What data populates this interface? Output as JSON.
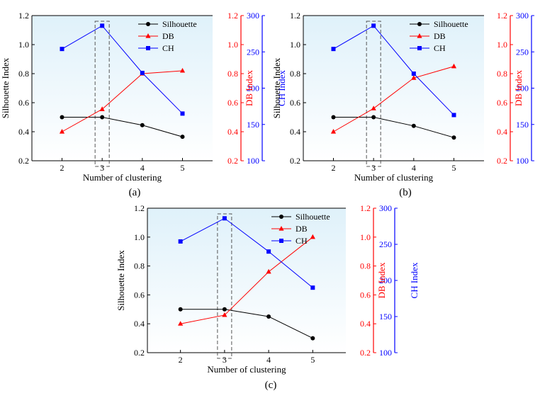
{
  "chart_data": [
    {
      "type": "line",
      "caption": "(a)",
      "xlabel": "Number of clustering",
      "categories": [
        "2",
        "3",
        "4",
        "5"
      ],
      "y_axes": {
        "left": {
          "label": "Silhouette Index",
          "ticks": [
            "0.2",
            "0.4",
            "0.6",
            "0.8",
            "1.0",
            "1.2"
          ],
          "range": [
            0.2,
            1.2
          ],
          "color": "#000000"
        },
        "right1": {
          "label": "DB Index",
          "ticks": [
            "0.2",
            "0.4",
            "0.6",
            "0.8",
            "1.0",
            "1.2"
          ],
          "range": [
            0.2,
            1.2
          ],
          "color": "#ff0000"
        },
        "right2": {
          "label": "CH Index",
          "ticks": [
            "100",
            "150",
            "200",
            "250",
            "300"
          ],
          "range": [
            100,
            300
          ],
          "color": "#0000ff"
        }
      },
      "series": [
        {
          "name": "Silhouette",
          "axis": "left",
          "color": "#000000",
          "marker": "circle",
          "values": [
            0.5,
            0.5,
            0.445,
            0.365
          ]
        },
        {
          "name": "DB",
          "axis": "right1",
          "color": "#ff0000",
          "marker": "triangle",
          "values": [
            0.4,
            0.555,
            0.8,
            0.82
          ]
        },
        {
          "name": "CH",
          "axis": "right2",
          "color": "#0000ff",
          "marker": "square",
          "values": [
            254,
            286,
            221,
            165
          ]
        }
      ],
      "highlight_category": "3",
      "legend_position": "top-right",
      "background": "gradient light blue"
    },
    {
      "type": "line",
      "caption": "(b)",
      "xlabel": "Number of clustering",
      "categories": [
        "2",
        "3",
        "4",
        "5"
      ],
      "y_axes": {
        "left": {
          "label": "Silhouette Index",
          "ticks": [
            "0.2",
            "0.4",
            "0.6",
            "0.8",
            "1.0",
            "1.2"
          ],
          "range": [
            0.2,
            1.2
          ],
          "color": "#000000"
        },
        "right1": {
          "label": "DB Index",
          "ticks": [
            "0.2",
            "0.4",
            "0.6",
            "0.8",
            "1.0",
            "1.2"
          ],
          "range": [
            0.2,
            1.2
          ],
          "color": "#ff0000"
        },
        "right2": {
          "label": "CH Index",
          "ticks": [
            "100",
            "150",
            "200",
            "250",
            "300"
          ],
          "range": [
            100,
            300
          ],
          "color": "#0000ff"
        }
      },
      "series": [
        {
          "name": "Silhouette",
          "axis": "left",
          "color": "#000000",
          "marker": "circle",
          "values": [
            0.5,
            0.5,
            0.44,
            0.36
          ]
        },
        {
          "name": "DB",
          "axis": "right1",
          "color": "#ff0000",
          "marker": "triangle",
          "values": [
            0.4,
            0.56,
            0.77,
            0.85
          ]
        },
        {
          "name": "CH",
          "axis": "right2",
          "color": "#0000ff",
          "marker": "square",
          "values": [
            254,
            286,
            220,
            163
          ]
        }
      ],
      "highlight_category": "3",
      "legend_position": "top-right",
      "background": "gradient light blue"
    },
    {
      "type": "line",
      "caption": "(c)",
      "xlabel": "Number of clustering",
      "categories": [
        "2",
        "3",
        "4",
        "5"
      ],
      "y_axes": {
        "left": {
          "label": "Silhouette Index",
          "ticks": [
            "0.2",
            "0.4",
            "0.6",
            "0.8",
            "1.0",
            "1.2"
          ],
          "range": [
            0.2,
            1.2
          ],
          "color": "#000000"
        },
        "right1": {
          "label": "DB Index",
          "ticks": [
            "0.2",
            "0.4",
            "0.6",
            "0.8",
            "1.0",
            "1.2"
          ],
          "range": [
            0.2,
            1.2
          ],
          "color": "#ff0000"
        },
        "right2": {
          "label": "CH Index",
          "ticks": [
            "100",
            "150",
            "200",
            "250",
            "300"
          ],
          "range": [
            100,
            300
          ],
          "color": "#0000ff"
        }
      },
      "series": [
        {
          "name": "Silhouette",
          "axis": "left",
          "color": "#000000",
          "marker": "circle",
          "values": [
            0.5,
            0.5,
            0.45,
            0.3
          ]
        },
        {
          "name": "DB",
          "axis": "right1",
          "color": "#ff0000",
          "marker": "triangle",
          "values": [
            0.4,
            0.46,
            0.76,
            1.0
          ]
        },
        {
          "name": "CH",
          "axis": "right2",
          "color": "#0000ff",
          "marker": "square",
          "values": [
            254,
            286,
            240,
            190
          ]
        }
      ],
      "highlight_category": "3",
      "legend_position": "top-right",
      "background": "gradient light blue"
    }
  ]
}
